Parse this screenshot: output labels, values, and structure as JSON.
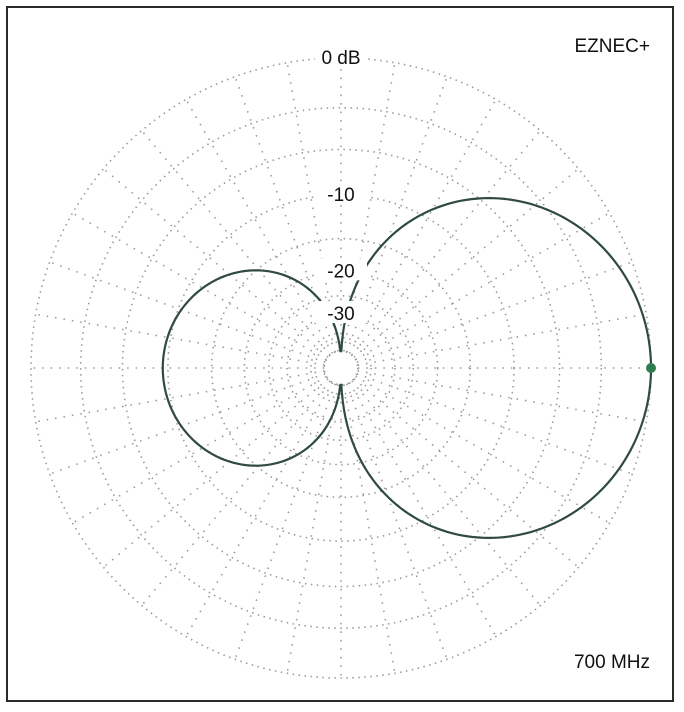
{
  "brand": "EZNEC+",
  "frequency": "700 MHz",
  "chart_data": {
    "type": "polar",
    "ring_labels": [
      "0 dB",
      "-10",
      "-20",
      "-30"
    ],
    "ring_values_db": [
      0,
      -10,
      -20,
      -30
    ],
    "rings_db": [
      0,
      -3,
      -6,
      -10,
      -15,
      -20,
      -25,
      -30,
      -40,
      -50
    ],
    "radial_step_deg": 10,
    "min_db": -50,
    "grid": "dotted",
    "series": [
      {
        "color": "#2f4a3f",
        "pattern": "cardioid_front_back",
        "peak_azimuth_deg": 0,
        "peak_gain_db": 0,
        "front_lobe_width_rel": 1.0,
        "back_lobe_peak_db": -9.5,
        "nulls_azimuth_deg": [
          90,
          270
        ]
      }
    ],
    "marker": {
      "azimuth_deg": 0,
      "gain_db": 0,
      "color": "#2e7d4f"
    }
  }
}
